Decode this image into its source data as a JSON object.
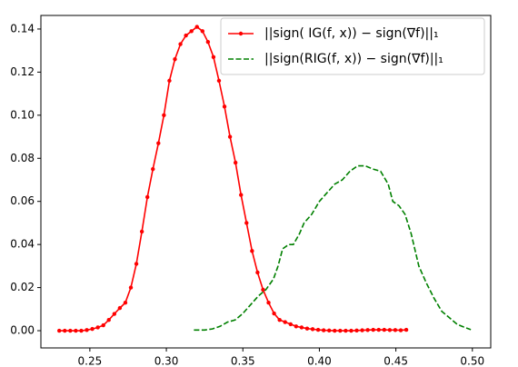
{
  "chart_data": {
    "type": "line",
    "xlim": [
      0.218,
      0.512
    ],
    "ylim": [
      -0.008,
      0.1463
    ],
    "xticks": [
      0.25,
      {
        "value": 0.3,
        "label": "0.30"
      },
      0.35,
      {
        "value": 0.4,
        "label": "0.40"
      },
      0.45,
      {
        "value": 0.5,
        "label": "0.50"
      }
    ],
    "yticks": [
      {
        "value": 0,
        "label": "0.00"
      },
      {
        "value": 0.02,
        "label": "0.02"
      },
      {
        "value": 0.04,
        "label": "0.04"
      },
      {
        "value": 0.06,
        "label": "0.06"
      },
      {
        "value": 0.08,
        "label": "0.08"
      },
      {
        "value": 0.1,
        "label": "0.10"
      },
      {
        "value": 0.12,
        "label": "0.12"
      },
      {
        "value": 0.14,
        "label": "0.14"
      }
    ],
    "legend": "upper right",
    "series": [
      {
        "name": "||sign(  IG(f, x)) − sign(∇f)||₁",
        "color": "#ff0000",
        "style": "solid",
        "markers": true,
        "x": [
          0.23,
          0.2336,
          0.2372,
          0.2408,
          0.2444,
          0.248,
          0.2516,
          0.2552,
          0.2588,
          0.2624,
          0.266,
          0.2696,
          0.2732,
          0.2768,
          0.2804,
          0.284,
          0.2876,
          0.2912,
          0.2948,
          0.2984,
          0.302,
          0.3056,
          0.3092,
          0.3128,
          0.3164,
          0.32,
          0.3236,
          0.3272,
          0.3308,
          0.3344,
          0.338,
          0.3416,
          0.3452,
          0.3488,
          0.3524,
          0.356,
          0.3596,
          0.3632,
          0.3668,
          0.3704,
          0.374,
          0.3776,
          0.3812,
          0.3848,
          0.3884,
          0.392,
          0.3956,
          0.3992,
          0.4028,
          0.4064,
          0.41,
          0.4136,
          0.4172,
          0.4208,
          0.4244,
          0.428,
          0.4316,
          0.4352,
          0.4388,
          0.4424,
          0.446,
          0.4496,
          0.4532,
          0.4568
        ],
        "values": [
          0,
          0,
          0,
          0,
          0,
          0.0003,
          0.0008,
          0.0015,
          0.0025,
          0.005,
          0.0078,
          0.0105,
          0.013,
          0.02,
          0.031,
          0.046,
          0.062,
          0.075,
          0.087,
          0.1,
          0.116,
          0.126,
          0.133,
          0.137,
          0.139,
          0.141,
          0.139,
          0.134,
          0.127,
          0.116,
          0.104,
          0.09,
          0.078,
          0.063,
          0.05,
          0.037,
          0.027,
          0.019,
          0.013,
          0.008,
          0.005,
          0.004,
          0.003,
          0.002,
          0.0015,
          0.001,
          0.0007,
          0.0004,
          0.0002,
          0.0001,
          0,
          0,
          0,
          0,
          0.0001,
          0.0002,
          0.0003,
          0.0004,
          0.0004,
          0.0004,
          0.0003,
          0.0003,
          0.0002,
          0.0004
        ]
      },
      {
        "name": "||sign(RIG(f, x)) − sign(∇f)||₁",
        "color": "#008000",
        "style": "dashed",
        "markers": false,
        "x": [
          0.318,
          0.325,
          0.33,
          0.335,
          0.34,
          0.345,
          0.35,
          0.355,
          0.36,
          0.365,
          0.37,
          0.373,
          0.376,
          0.38,
          0.383,
          0.387,
          0.39,
          0.395,
          0.4,
          0.405,
          0.41,
          0.415,
          0.42,
          0.425,
          0.43,
          0.435,
          0.44,
          0.445,
          0.448,
          0.452,
          0.456,
          0.46,
          0.465,
          0.47,
          0.475,
          0.48,
          0.485,
          0.49,
          0.495,
          0.499
        ],
        "values": [
          0.0003,
          0.0003,
          0.0008,
          0.002,
          0.004,
          0.005,
          0.008,
          0.012,
          0.016,
          0.019,
          0.024,
          0.03,
          0.038,
          0.04,
          0.04,
          0.045,
          0.05,
          0.054,
          0.06,
          0.064,
          0.068,
          0.07,
          0.074,
          0.0765,
          0.0765,
          0.075,
          0.074,
          0.068,
          0.06,
          0.058,
          0.054,
          0.045,
          0.03,
          0.022,
          0.015,
          0.009,
          0.006,
          0.003,
          0.0015,
          0.0005
        ]
      }
    ]
  }
}
